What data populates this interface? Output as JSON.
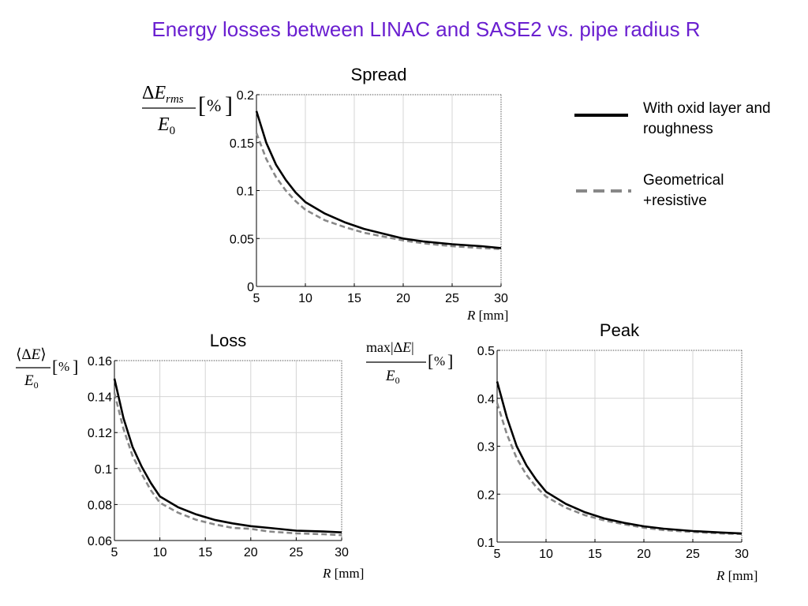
{
  "page_title": "Energy losses between LINAC and SASE2  vs. pipe radius R",
  "legend": [
    {
      "label": "With oxid layer and roughness",
      "color": "#000000",
      "style": "solid"
    },
    {
      "label": "Geometrical +resistive",
      "color": "#888888",
      "style": "dashed"
    }
  ],
  "chart_data": [
    {
      "type": "line",
      "title": "Spread",
      "ylabel": "ΔE_rms / E_0 [%]",
      "xlabel": "R [mm]",
      "xlim": [
        5,
        30
      ],
      "ylim": [
        0,
        0.2
      ],
      "xticks": [
        5,
        10,
        15,
        20,
        25,
        30
      ],
      "yticks": [
        0,
        0.05,
        0.1,
        0.15,
        0.2
      ],
      "ytick_labels": [
        "0",
        "0.05",
        "0.1",
        "0.15",
        "0.2"
      ],
      "grid": true,
      "x": [
        5,
        6,
        7,
        8,
        9,
        10,
        12,
        14,
        16,
        18,
        20,
        22,
        25,
        28,
        30
      ],
      "series": [
        {
          "name": "With oxid layer and roughness",
          "values": [
            0.183,
            0.15,
            0.127,
            0.111,
            0.098,
            0.088,
            0.076,
            0.067,
            0.06,
            0.055,
            0.05,
            0.047,
            0.044,
            0.042,
            0.04
          ]
        },
        {
          "name": "Geometrical +resistive",
          "values": [
            0.16,
            0.133,
            0.114,
            0.1,
            0.089,
            0.08,
            0.069,
            0.062,
            0.056,
            0.052,
            0.048,
            0.045,
            0.042,
            0.04,
            0.039
          ]
        }
      ]
    },
    {
      "type": "line",
      "title": "Loss",
      "ylabel": "⟨ΔE⟩ / E_0 [%]",
      "xlabel": "R [mm]",
      "xlim": [
        5,
        30
      ],
      "ylim": [
        0.06,
        0.16
      ],
      "xticks": [
        5,
        10,
        15,
        20,
        25,
        30
      ],
      "yticks": [
        0.06,
        0.08,
        0.1,
        0.12,
        0.14,
        0.16
      ],
      "ytick_labels": [
        "0.06",
        "0.08",
        "0.1",
        "0.12",
        "0.14",
        "0.16"
      ],
      "grid": true,
      "x": [
        5,
        6,
        7,
        8,
        9,
        10,
        12,
        14,
        16,
        18,
        20,
        22,
        25,
        28,
        30
      ],
      "series": [
        {
          "name": "With oxid layer and roughness",
          "values": [
            0.15,
            0.128,
            0.112,
            0.101,
            0.092,
            0.0845,
            0.0785,
            0.0745,
            0.0715,
            0.0695,
            0.068,
            0.067,
            0.0655,
            0.065,
            0.0645
          ]
        },
        {
          "name": "Geometrical +resistive",
          "values": [
            0.142,
            0.122,
            0.107,
            0.097,
            0.088,
            0.081,
            0.0755,
            0.0715,
            0.069,
            0.067,
            0.0665,
            0.065,
            0.064,
            0.0635,
            0.063
          ]
        }
      ]
    },
    {
      "type": "line",
      "title": "Peak",
      "ylabel": "max|ΔE| / E_0 [%]",
      "xlabel": "R [mm]",
      "xlim": [
        5,
        30
      ],
      "ylim": [
        0.1,
        0.5
      ],
      "xticks": [
        5,
        10,
        15,
        20,
        25,
        30
      ],
      "yticks": [
        0.1,
        0.2,
        0.3,
        0.4,
        0.5
      ],
      "ytick_labels": [
        "0.1",
        "0.2",
        "0.3",
        "0.4",
        "0.5"
      ],
      "grid": true,
      "x": [
        5,
        6,
        7,
        8,
        9,
        10,
        12,
        14,
        16,
        18,
        20,
        22,
        25,
        28,
        30
      ],
      "series": [
        {
          "name": "With oxid layer and roughness",
          "values": [
            0.435,
            0.36,
            0.3,
            0.26,
            0.23,
            0.205,
            0.18,
            0.162,
            0.149,
            0.14,
            0.133,
            0.128,
            0.123,
            0.12,
            0.118
          ]
        },
        {
          "name": "Geometrical +resistive",
          "values": [
            0.39,
            0.325,
            0.275,
            0.24,
            0.215,
            0.195,
            0.172,
            0.156,
            0.145,
            0.137,
            0.13,
            0.125,
            0.121,
            0.118,
            0.117
          ]
        }
      ]
    }
  ]
}
